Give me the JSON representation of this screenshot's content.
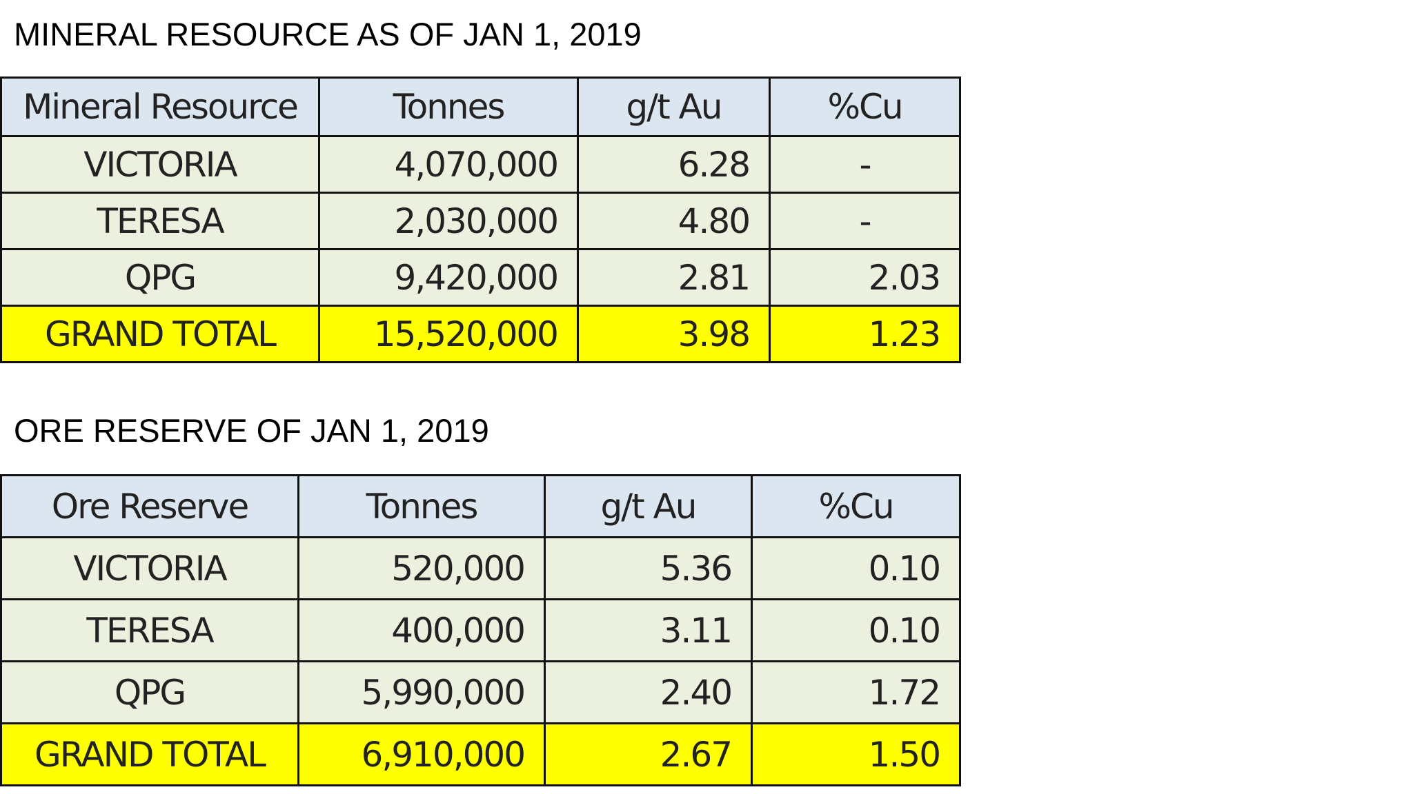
{
  "sections": [
    {
      "title": "MINERAL RESOURCE AS OF JAN 1, 2019",
      "table": {
        "header": [
          "Mineral Resource",
          "Tonnes",
          "g/t Au",
          "%Cu"
        ],
        "rows": [
          [
            "VICTORIA",
            "4,070,000",
            "6.28",
            "-"
          ],
          [
            "TERESA",
            "2,030,000",
            "4.80",
            "-"
          ],
          [
            "QPG",
            "9,420,000",
            "2.81",
            "2.03"
          ],
          [
            "GRAND TOTAL",
            "15,520,000",
            "3.98",
            "1.23"
          ]
        ]
      }
    },
    {
      "title": "ORE RESERVE OF JAN 1, 2019",
      "table": {
        "header": [
          "Ore Reserve",
          "Tonnes",
          "g/t Au",
          "%Cu"
        ],
        "rows": [
          [
            "VICTORIA",
            "520,000",
            "5.36",
            "0.10"
          ],
          [
            "TERESA",
            "400,000",
            "3.11",
            "0.10"
          ],
          [
            "QPG",
            "5,990,000",
            "2.40",
            "1.72"
          ],
          [
            "GRAND TOTAL",
            "6,910,000",
            "2.67",
            "1.50"
          ]
        ]
      }
    }
  ]
}
